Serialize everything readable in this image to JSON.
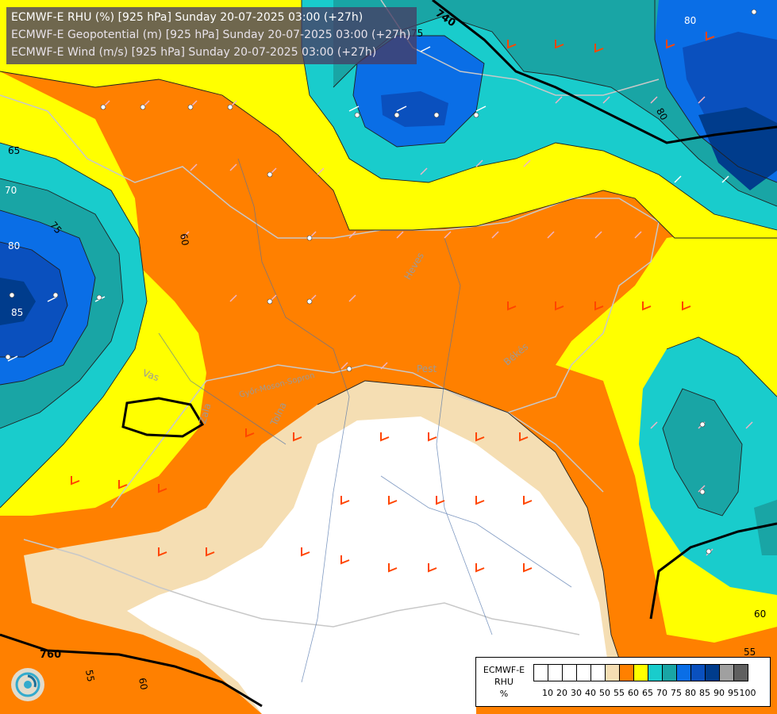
{
  "header": {
    "line1": "ECMWF-E RHU (%) [925 hPa] Sunday 20-07-2025 03:00 (+27h)",
    "line2": "ECMWF-E Geopotential (m) [925 hPa] Sunday 20-07-2025 03:00 (+27h)",
    "line3": "ECMWF-E Wind (m/s) [925 hPa] Sunday 20-07-2025 03:00 (+27h)"
  },
  "legend": {
    "title_line1": "ECMWF-E",
    "title_line2": "RHU",
    "title_line3": "%",
    "colors": [
      "#ffffff",
      "#ffffff",
      "#ffffff",
      "#ffffff",
      "#ffffff",
      "#f5deb3",
      "#ff8000",
      "#ffff00",
      "#19cccc",
      "#19a5a5",
      "#0a6ee6",
      "#0a50be",
      "#003c8c",
      "#a0a0a0",
      "#606060"
    ],
    "ticks": [
      "10",
      "20",
      "30",
      "40",
      "50",
      "55",
      "60",
      "65",
      "70",
      "75",
      "80",
      "85",
      "90",
      "95",
      "100"
    ]
  },
  "labels": {
    "geo_740": "740",
    "geo_760": "760",
    "rhu_75": "75",
    "rhu_80_ne": "80",
    "rhu_80_ne2": "80",
    "rhu_65": "65",
    "rhu_70": "70",
    "rhu_75_w": "75",
    "rhu_80_w": "80",
    "rhu_85_w": "85",
    "rhu_60_w": "60",
    "rhu_60_se": "60",
    "rhu_55_se": "55",
    "rhu_55_s": "55",
    "rhu_60_s": "60",
    "county_heves": "Heves",
    "county_pest": "Pest",
    "county_bekes": "Békés",
    "county_vas": "Vas",
    "county_zala": "Zala",
    "county_tolna": "Tolna",
    "county_gyor": "Győr-Moson-Sopron"
  }
}
